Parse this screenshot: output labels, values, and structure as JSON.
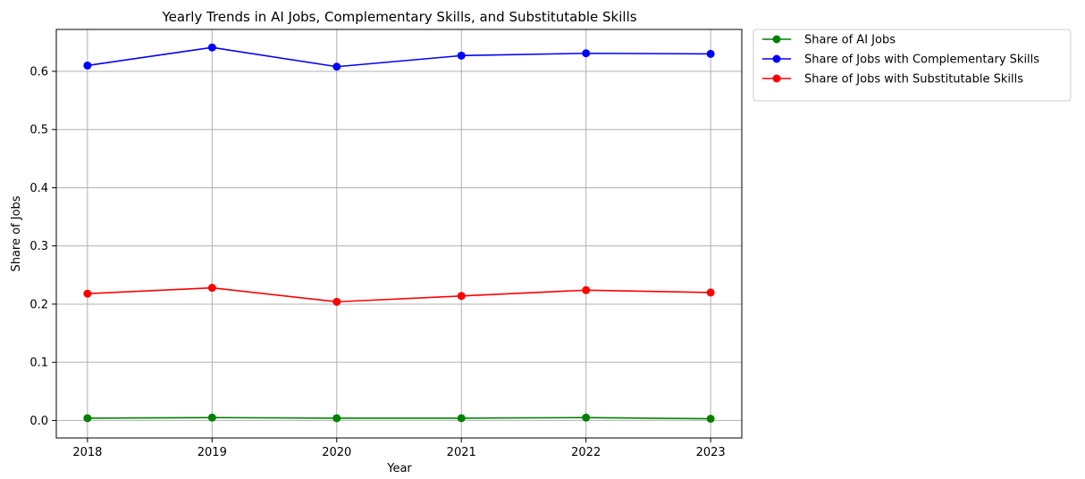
{
  "chart_data": {
    "type": "line",
    "title": "Yearly Trends in AI Jobs, Complementary Skills, and Substitutable Skills",
    "xlabel": "Year",
    "ylabel": "Share of Jobs",
    "x": [
      2018,
      2019,
      2020,
      2021,
      2022,
      2023
    ],
    "x_ticks": [
      "2018",
      "2019",
      "2020",
      "2021",
      "2022",
      "2023"
    ],
    "xlim": [
      2017.75,
      2023.25
    ],
    "ylim": [
      -0.03,
      0.672
    ],
    "y_ticks": [
      0.0,
      0.1,
      0.2,
      0.3,
      0.4,
      0.5,
      0.6
    ],
    "y_tick_labels": [
      "0.0",
      "0.1",
      "0.2",
      "0.3",
      "0.4",
      "0.5",
      "0.6"
    ],
    "grid": true,
    "legend_position": "outside-top-right",
    "series": [
      {
        "name": "Share of AI Jobs",
        "color": "#008000",
        "values": [
          0.004,
          0.005,
          0.004,
          0.004,
          0.005,
          0.003
        ]
      },
      {
        "name": "Share of Jobs with Complementary Skills",
        "color": "#0000ff",
        "values": [
          0.61,
          0.641,
          0.608,
          0.627,
          0.631,
          0.63
        ]
      },
      {
        "name": "Share of Jobs with Substitutable Skills",
        "color": "#ff0000",
        "values": [
          0.218,
          0.228,
          0.204,
          0.214,
          0.224,
          0.22
        ]
      }
    ]
  }
}
